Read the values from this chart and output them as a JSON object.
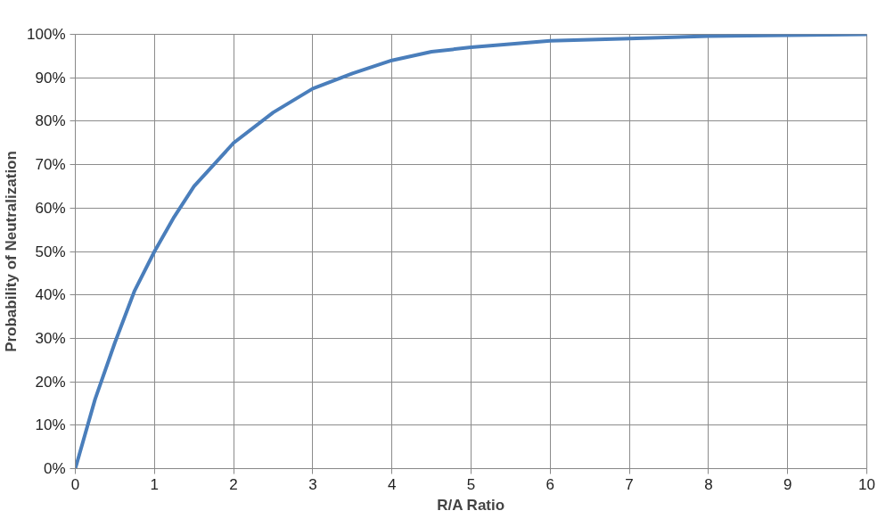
{
  "chart_data": {
    "type": "line",
    "xlabel": "R/A Ratio",
    "ylabel": "Probability of Neutralization",
    "x": [
      0,
      0.25,
      0.5,
      0.75,
      1,
      1.25,
      1.5,
      1.75,
      2,
      2.5,
      3,
      3.5,
      4,
      4.5,
      5,
      6,
      7,
      8,
      9,
      10
    ],
    "series": [
      {
        "color": "#4a7ebb",
        "values": [
          0,
          16,
          29,
          41,
          50,
          58,
          65,
          70,
          75,
          82,
          87.5,
          91,
          94,
          96,
          97,
          98.5,
          99,
          99.6,
          99.8,
          100
        ]
      }
    ],
    "xlim": [
      0,
      10
    ],
    "xticks": [
      0,
      1,
      2,
      3,
      4,
      5,
      6,
      7,
      8,
      9,
      10
    ],
    "ylim": [
      0,
      100
    ],
    "yticks": [
      {
        "value": 0,
        "label": "0%"
      },
      {
        "value": 10,
        "label": "10%"
      },
      {
        "value": 20,
        "label": "20%"
      },
      {
        "value": 30,
        "label": "30%"
      },
      {
        "value": 40,
        "label": "40%"
      },
      {
        "value": 50,
        "label": "50%"
      },
      {
        "value": 60,
        "label": "60%"
      },
      {
        "value": 70,
        "label": "70%"
      },
      {
        "value": 80,
        "label": "80%"
      },
      {
        "value": 90,
        "label": "90%"
      },
      {
        "value": 100,
        "label": "100%"
      }
    ],
    "grid": true,
    "marker": "none",
    "line_style": "solid"
  }
}
